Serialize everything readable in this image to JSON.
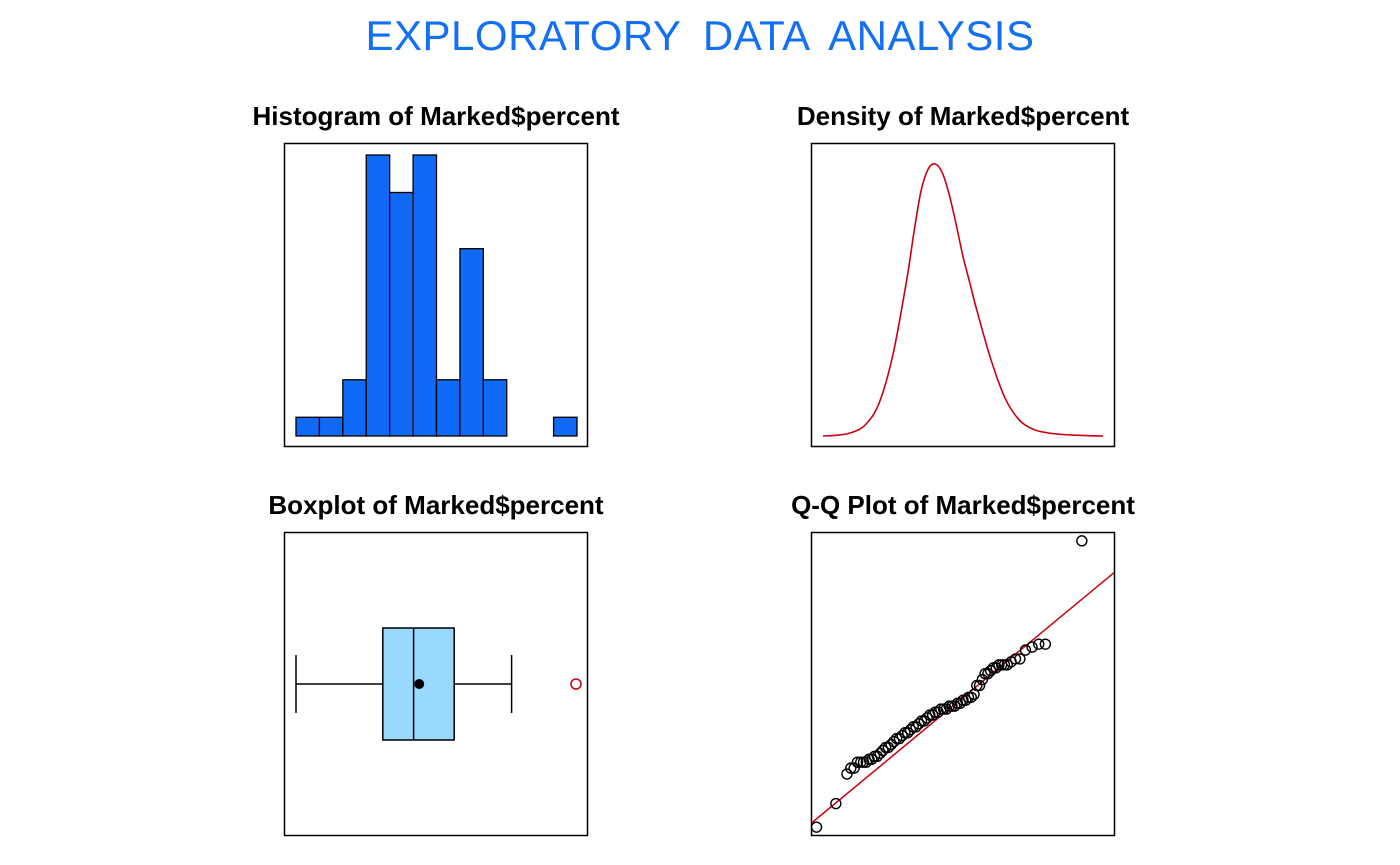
{
  "title": "EXPLORATORY  DATA  ANALYSIS",
  "colors": {
    "title": "#1370f5",
    "hist_fill": "#0f6af8",
    "density_line": "#c8000f",
    "box_fill": "#9ad9fe",
    "outlier": "#c8000f",
    "qq_line": "#c8000f"
  },
  "chart_data": [
    {
      "type": "bar",
      "title": "Histogram of Marked$percent",
      "bins": 12,
      "values": [
        1,
        1,
        3,
        15,
        13,
        15,
        3,
        10,
        3,
        0,
        0,
        1
      ],
      "ylim": [
        0,
        15
      ],
      "axes": "none"
    },
    {
      "type": "line",
      "title": "Density of Marked$percent",
      "x": [
        0,
        2,
        4,
        6,
        8,
        10,
        12,
        13,
        14,
        15,
        16,
        17,
        18,
        19,
        20,
        21,
        22,
        24,
        26,
        28,
        30,
        32,
        34,
        36,
        38,
        40
      ],
      "y": [
        0.0,
        0.003,
        0.012,
        0.04,
        0.12,
        0.3,
        0.58,
        0.75,
        0.9,
        0.98,
        1.0,
        0.97,
        0.89,
        0.78,
        0.66,
        0.56,
        0.46,
        0.28,
        0.14,
        0.06,
        0.025,
        0.012,
        0.006,
        0.003,
        0.001,
        0.0
      ],
      "ylim": [
        0,
        1.04
      ],
      "axes": "none"
    },
    {
      "type": "boxplot",
      "title": "Boxplot of Marked$percent",
      "whisker_low": 0.0,
      "q1": 0.31,
      "median": 0.42,
      "mean": 0.44,
      "q3": 0.565,
      "whisker_high": 0.77,
      "outliers": [
        1.0
      ],
      "axes": "none"
    },
    {
      "type": "scatter",
      "title": "Q-Q Plot of Marked$percent",
      "x": [
        -2.4,
        -2.05,
        -1.85,
        -1.78,
        -1.72,
        -1.66,
        -1.6,
        -1.55,
        -1.5,
        -1.45,
        -1.4,
        -1.35,
        -1.3,
        -1.25,
        -1.2,
        -1.15,
        -1.1,
        -1.05,
        -1.0,
        -0.95,
        -0.9,
        -0.85,
        -0.8,
        -0.75,
        -0.7,
        -0.65,
        -0.6,
        -0.55,
        -0.5,
        -0.45,
        -0.4,
        -0.35,
        -0.3,
        -0.25,
        -0.2,
        -0.15,
        -0.1,
        -0.05,
        0.0,
        0.05,
        0.1,
        0.15,
        0.2,
        0.25,
        0.3,
        0.35,
        0.4,
        0.45,
        0.5,
        0.55,
        0.6,
        0.65,
        0.7,
        0.75,
        0.8,
        0.85,
        0.9,
        0.95,
        1.0,
        1.05,
        1.12,
        1.2,
        1.28,
        1.38,
        1.5,
        1.62,
        1.74,
        2.4
      ],
      "y": [
        0.0,
        0.08,
        0.18,
        0.2,
        0.2,
        0.22,
        0.22,
        0.22,
        0.22,
        0.23,
        0.23,
        0.24,
        0.24,
        0.25,
        0.26,
        0.27,
        0.27,
        0.28,
        0.29,
        0.3,
        0.3,
        0.31,
        0.32,
        0.32,
        0.33,
        0.34,
        0.34,
        0.35,
        0.36,
        0.36,
        0.37,
        0.38,
        0.38,
        0.39,
        0.39,
        0.4,
        0.4,
        0.4,
        0.41,
        0.41,
        0.41,
        0.42,
        0.42,
        0.43,
        0.43,
        0.44,
        0.44,
        0.45,
        0.48,
        0.48,
        0.5,
        0.52,
        0.52,
        0.53,
        0.54,
        0.54,
        0.55,
        0.55,
        0.55,
        0.55,
        0.56,
        0.57,
        0.57,
        0.6,
        0.61,
        0.62,
        0.62,
        0.97
      ],
      "ref_line": {
        "intercept": 0.4,
        "slope": 0.155
      },
      "xlim": [
        -2.5,
        3.0
      ],
      "ylim": [
        -0.03,
        1.0
      ],
      "axes": "none"
    }
  ]
}
